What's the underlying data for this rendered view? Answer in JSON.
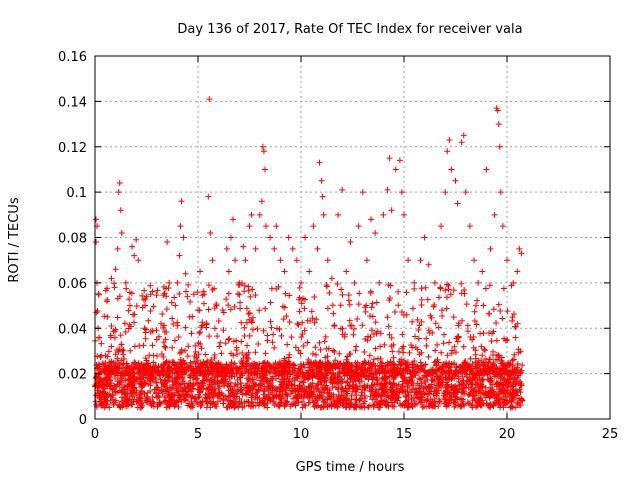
{
  "chart_data": {
    "type": "scatter",
    "title": "Day 136 of 2017, Rate Of TEC Index for receiver vala",
    "xlabel": "GPS time / hours",
    "ylabel": "ROTI / TECUs",
    "xlim": [
      0,
      25
    ],
    "ylim": [
      0,
      0.16
    ],
    "x_ticks": [
      0,
      5,
      10,
      15,
      20,
      25
    ],
    "y_ticks": [
      0,
      0.02,
      0.04,
      0.06,
      0.08,
      0.1,
      0.12,
      0.14,
      0.16
    ],
    "x_tick_labels": [
      "0",
      "5",
      "10",
      "15",
      "20",
      "25"
    ],
    "y_tick_labels": [
      "0",
      "0.02",
      "0.04",
      "0.06",
      "0.08",
      "0.1",
      "0.12",
      "0.14",
      "0.16"
    ],
    "grid": true,
    "marker": "+",
    "color": "#ff0000",
    "series": [
      {
        "name": "",
        "x_range": [
          0,
          20.75
        ],
        "baseline_range": [
          0.005,
          0.025
        ],
        "points": [
          [
            0.05,
            0.088
          ],
          [
            0.1,
            0.085
          ],
          [
            0.05,
            0.078
          ],
          [
            0.1,
            0.06
          ],
          [
            0.15,
            0.04
          ],
          [
            0.2,
            0.036
          ],
          [
            0.3,
            0.028
          ],
          [
            0.6,
            0.045
          ],
          [
            0.8,
            0.062
          ],
          [
            0.95,
            0.058
          ],
          [
            1.0,
            0.066
          ],
          [
            1.1,
            0.075
          ],
          [
            1.15,
            0.1
          ],
          [
            1.2,
            0.104
          ],
          [
            1.25,
            0.092
          ],
          [
            1.3,
            0.082
          ],
          [
            1.5,
            0.06
          ],
          [
            1.7,
            0.05
          ],
          [
            1.8,
            0.076
          ],
          [
            1.9,
            0.072
          ],
          [
            2.0,
            0.079
          ],
          [
            2.1,
            0.07
          ],
          [
            2.4,
            0.04
          ],
          [
            2.7,
            0.055
          ],
          [
            3.0,
            0.035
          ],
          [
            3.2,
            0.042
          ],
          [
            3.5,
            0.078
          ],
          [
            3.6,
            0.06
          ],
          [
            3.9,
            0.05
          ],
          [
            4.0,
            0.06
          ],
          [
            4.1,
            0.072
          ],
          [
            4.15,
            0.085
          ],
          [
            4.2,
            0.096
          ],
          [
            4.3,
            0.08
          ],
          [
            4.4,
            0.064
          ],
          [
            4.6,
            0.045
          ],
          [
            4.8,
            0.055
          ],
          [
            5.0,
            0.048
          ],
          [
            5.1,
            0.065
          ],
          [
            5.3,
            0.055
          ],
          [
            5.5,
            0.098
          ],
          [
            5.55,
            0.141
          ],
          [
            5.6,
            0.082
          ],
          [
            5.7,
            0.07
          ],
          [
            5.9,
            0.05
          ],
          [
            6.2,
            0.048
          ],
          [
            6.4,
            0.075
          ],
          [
            6.5,
            0.065
          ],
          [
            6.6,
            0.08
          ],
          [
            6.7,
            0.088
          ],
          [
            6.8,
            0.07
          ],
          [
            7.0,
            0.06
          ],
          [
            7.2,
            0.076
          ],
          [
            7.3,
            0.07
          ],
          [
            7.5,
            0.085
          ],
          [
            7.6,
            0.09
          ],
          [
            7.8,
            0.075
          ],
          [
            8.0,
            0.09
          ],
          [
            8.1,
            0.096
          ],
          [
            8.15,
            0.12
          ],
          [
            8.2,
            0.118
          ],
          [
            8.25,
            0.11
          ],
          [
            8.3,
            0.085
          ],
          [
            8.5,
            0.08
          ],
          [
            8.7,
            0.075
          ],
          [
            8.8,
            0.085
          ],
          [
            9.0,
            0.07
          ],
          [
            9.2,
            0.065
          ],
          [
            9.4,
            0.08
          ],
          [
            9.6,
            0.075
          ],
          [
            9.8,
            0.07
          ],
          [
            10.0,
            0.06
          ],
          [
            10.2,
            0.08
          ],
          [
            10.4,
            0.065
          ],
          [
            10.6,
            0.085
          ],
          [
            10.8,
            0.075
          ],
          [
            10.9,
            0.113
          ],
          [
            11.0,
            0.105
          ],
          [
            11.05,
            0.098
          ],
          [
            11.1,
            0.09
          ],
          [
            11.3,
            0.07
          ],
          [
            11.5,
            0.062
          ],
          [
            11.8,
            0.09
          ],
          [
            12.0,
            0.101
          ],
          [
            12.2,
            0.065
          ],
          [
            12.4,
            0.078
          ],
          [
            12.6,
            0.06
          ],
          [
            12.8,
            0.085
          ],
          [
            13.0,
            0.1
          ],
          [
            13.2,
            0.07
          ],
          [
            13.4,
            0.088
          ],
          [
            13.6,
            0.082
          ],
          [
            13.8,
            0.06
          ],
          [
            14.0,
            0.09
          ],
          [
            14.2,
            0.101
          ],
          [
            14.3,
            0.115
          ],
          [
            14.4,
            0.092
          ],
          [
            14.6,
            0.11
          ],
          [
            14.8,
            0.114
          ],
          [
            14.9,
            0.1
          ],
          [
            15.0,
            0.09
          ],
          [
            15.2,
            0.07
          ],
          [
            15.5,
            0.06
          ],
          [
            15.8,
            0.07
          ],
          [
            16.0,
            0.08
          ],
          [
            16.2,
            0.068
          ],
          [
            16.5,
            0.06
          ],
          [
            16.8,
            0.085
          ],
          [
            17.0,
            0.1
          ],
          [
            17.1,
            0.118
          ],
          [
            17.2,
            0.123
          ],
          [
            17.3,
            0.11
          ],
          [
            17.5,
            0.105
          ],
          [
            17.6,
            0.095
          ],
          [
            17.8,
            0.122
          ],
          [
            17.9,
            0.125
          ],
          [
            18.0,
            0.1
          ],
          [
            18.2,
            0.085
          ],
          [
            18.4,
            0.07
          ],
          [
            18.6,
            0.06
          ],
          [
            18.8,
            0.065
          ],
          [
            19.0,
            0.11
          ],
          [
            19.2,
            0.075
          ],
          [
            19.4,
            0.09
          ],
          [
            19.5,
            0.137
          ],
          [
            19.55,
            0.136
          ],
          [
            19.6,
            0.13
          ],
          [
            19.65,
            0.12
          ],
          [
            19.7,
            0.1
          ],
          [
            19.8,
            0.085
          ],
          [
            20.0,
            0.07
          ],
          [
            20.3,
            0.06
          ],
          [
            20.5,
            0.065
          ],
          [
            20.6,
            0.075
          ],
          [
            20.7,
            0.073
          ]
        ]
      }
    ]
  }
}
